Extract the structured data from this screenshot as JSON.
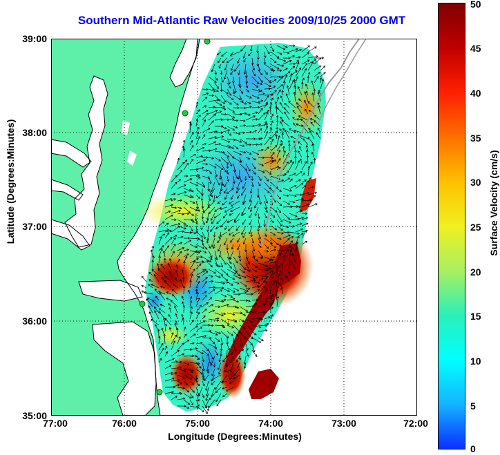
{
  "title": "Southern Mid-Atlantic Raw Velocities 2009/10/25 2000 GMT",
  "xlabel": "Longitude (Degrees:Minutes)",
  "ylabel": "Latitude (Degrees:Minutes)",
  "colorbar_label": "Surface Velocity (cm/s)",
  "x_ticks": [
    "77:00",
    "76:00",
    "75:00",
    "74:00",
    "73:00",
    "72:00"
  ],
  "y_ticks": [
    "39:00",
    "38:00",
    "37:00",
    "36:00",
    "35:00"
  ],
  "colorbar_ticks": [
    "50",
    "45",
    "40",
    "35",
    "30",
    "25",
    "20",
    "15",
    "10",
    "5",
    "0"
  ],
  "colors": {
    "land": "#5ef0a8",
    "water": "#ffffff",
    "coastline": "#000000",
    "grid": "#000000",
    "title": "#0000ee",
    "colormap": [
      "#0a2fff",
      "#14b4ff",
      "#00ffff",
      "#2af0b8",
      "#a8f060",
      "#f0f020",
      "#ffc000",
      "#ff7000",
      "#ff2000",
      "#c00000",
      "#800000"
    ]
  },
  "chart_data": {
    "type": "heatmap",
    "title": "Southern Mid-Atlantic Raw Velocities 2009/10/25 2000 GMT",
    "xlabel": "Longitude (Degrees:Minutes)",
    "ylabel": "Latitude (Degrees:Minutes)",
    "xlim": [
      -77.0,
      -72.0
    ],
    "ylim": [
      35.0,
      39.0
    ],
    "colorbar": {
      "label": "Surface Velocity (cm/s)",
      "range": [
        0,
        50
      ],
      "colormap": "jet"
    },
    "grid": true
  }
}
